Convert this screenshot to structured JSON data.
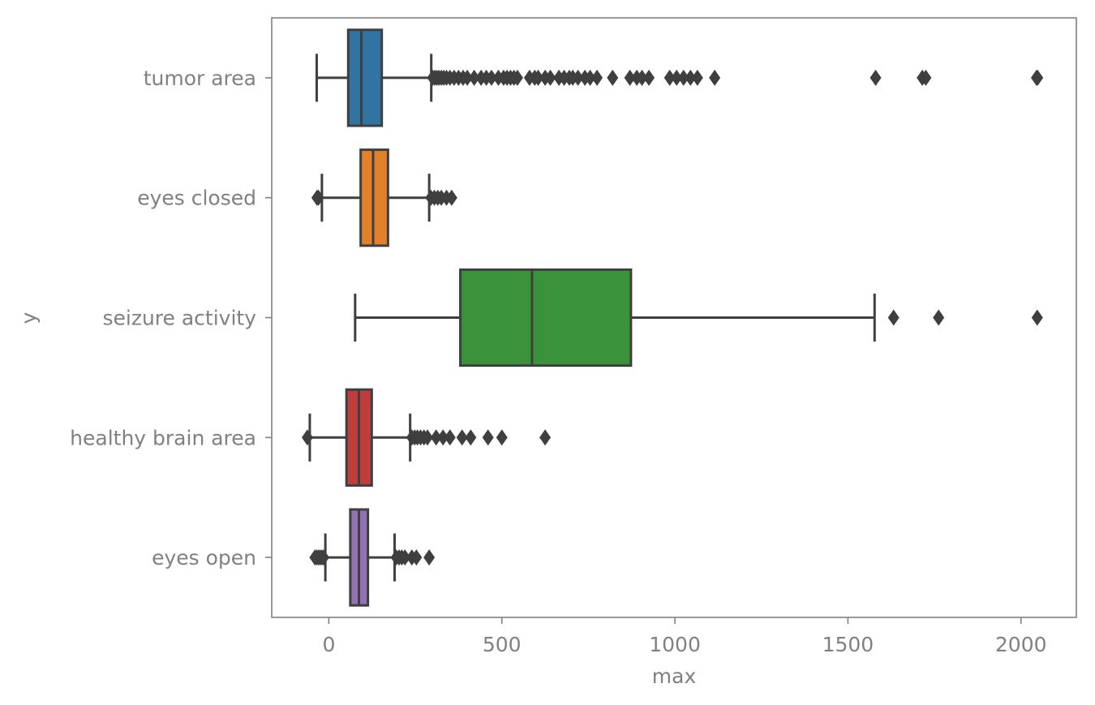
{
  "chart_data": {
    "type": "box",
    "orientation": "horizontal",
    "xlabel": "max",
    "ylabel": "y",
    "xlim": [
      -165,
      2160
    ],
    "xticks": [
      0,
      500,
      1000,
      1500,
      2000
    ],
    "grid": false,
    "legend": "none",
    "categories": [
      "tumor area",
      "eyes closed",
      "seizure activity",
      "healthy brain area",
      "eyes open"
    ],
    "series": [
      {
        "category": "tumor area",
        "color": "#3274a1",
        "whisker_low": -35,
        "q1": 56,
        "median": 94,
        "q3": 153,
        "whisker_high": 296,
        "outliers": [
          300,
          306,
          312,
          318,
          325,
          332,
          340,
          350,
          362,
          375,
          388,
          400,
          420,
          440,
          455,
          470,
          490,
          505,
          515,
          525,
          535,
          545,
          580,
          595,
          605,
          625,
          640,
          665,
          680,
          695,
          705,
          720,
          740,
          755,
          775,
          820,
          870,
          890,
          905,
          925,
          985,
          1005,
          1025,
          1045,
          1065,
          1115,
          1580,
          1715,
          1725,
          2045,
          2048
        ]
      },
      {
        "category": "eyes closed",
        "color": "#e1812c",
        "whisker_low": -20,
        "q1": 92,
        "median": 128,
        "q3": 171,
        "whisker_high": 290,
        "outliers": [
          -34,
          -30,
          295,
          305,
          315,
          325,
          340,
          355
        ]
      },
      {
        "category": "seizure activity",
        "color": "#3a923a",
        "whisker_low": 76,
        "q1": 380,
        "median": 587,
        "q3": 873,
        "whisker_high": 1577,
        "outliers": [
          1632,
          1762,
          2047
        ]
      },
      {
        "category": "healthy brain area",
        "color": "#c03d3e",
        "whisker_low": -55,
        "q1": 51,
        "median": 87,
        "q3": 124,
        "whisker_high": 235,
        "outliers": [
          -62,
          240,
          248,
          256,
          265,
          275,
          285,
          310,
          330,
          350,
          385,
          410,
          460,
          500,
          625
        ]
      },
      {
        "category": "eyes open",
        "color": "#9372b2",
        "whisker_low": -10,
        "q1": 62,
        "median": 87,
        "q3": 113,
        "whisker_high": 190,
        "outliers": [
          -40,
          -35,
          -30,
          -25,
          -20,
          -15,
          195,
          203,
          211,
          220,
          240,
          253,
          290
        ]
      }
    ]
  }
}
